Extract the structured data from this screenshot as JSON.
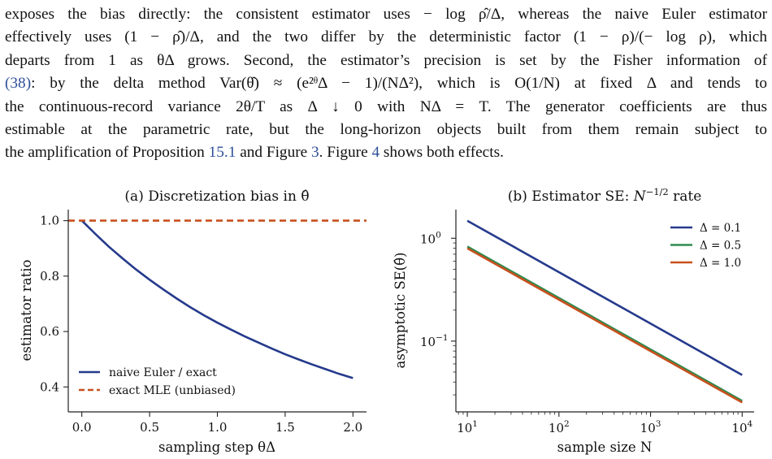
{
  "text_lines": [
    "exposes the bias directly: the consistent estimator uses − log ρ̂/Δ, whereas the naive Euler estimator",
    "effectively uses (1 − ρ̂)/Δ, and the two differ by the deterministic factor (1 − ρ)/(− log ρ), which",
    "departs from 1 as θΔ grows. Second, the estimator’s precision is set by the Fisher information of",
    "(38): by the delta method Var(θ̂) ≈ (e²ᶿΔ − 1)/(NΔ²), which is O(1/N) at fixed Δ and tends to",
    "the continuous-record variance 2θ/T as Δ ↓ 0 with NΔ = T. The generator coefficients are thus",
    "estimable at the parametric rate, but the long-horizon objects built from them remain subject to",
    "the amplification of Proposition 15.1 and Figure 3. Figure 4 shows both effects."
  ],
  "line4_ref": "(38)",
  "line4_rest": ": by the delta method Var(θ̂) ≈ (e²ᶿΔ − 1)/(NΔ²), which is O(1/N) at fixed Δ and tends to",
  "line7_parts": {
    "a": "the amplification of Proposition ",
    "ref1": "15.1",
    "b": " and Figure ",
    "ref2": "3",
    "c": ". Figure ",
    "ref3": "4",
    "d": " shows both effects."
  },
  "chart_data": [
    {
      "type": "line",
      "title": "(a) Discretization bias in θ̂",
      "xlabel": "sampling step θΔ",
      "ylabel": "estimator ratio",
      "xlim": [
        -0.1,
        2.1
      ],
      "ylim": [
        0.31,
        1.04
      ],
      "xticks": [
        0.0,
        0.5,
        1.0,
        1.5,
        2.0
      ],
      "xtick_labels": [
        "0.0",
        "0.5",
        "1.0",
        "1.5",
        "2.0"
      ],
      "yticks": [
        0.4,
        0.6,
        0.8,
        1.0
      ],
      "ytick_labels": [
        "0.4",
        "0.6",
        "0.8",
        "1.0"
      ],
      "legend_position": "lower-left",
      "series": [
        {
          "name": "naive Euler / exact",
          "color": "#253a8c",
          "style": "solid",
          "x": [
            0.0,
            0.1,
            0.2,
            0.3,
            0.4,
            0.5,
            0.6,
            0.7,
            0.8,
            0.9,
            1.0,
            1.1,
            1.2,
            1.3,
            1.4,
            1.5,
            1.6,
            1.7,
            1.8,
            1.9,
            2.0
          ],
          "y": [
            1.0,
            0.952,
            0.906,
            0.864,
            0.824,
            0.787,
            0.752,
            0.719,
            0.688,
            0.659,
            0.632,
            0.607,
            0.583,
            0.561,
            0.539,
            0.518,
            0.499,
            0.481,
            0.464,
            0.447,
            0.432
          ]
        },
        {
          "name": "exact MLE (unbiased)",
          "color": "#c8501e",
          "style": "dashed",
          "x": [
            -0.1,
            2.1
          ],
          "y": [
            1.0,
            1.0
          ]
        }
      ]
    },
    {
      "type": "line",
      "title": "(b) Estimator SE: N⁻¹ᐟ² rate",
      "title_parts": {
        "pre": "(b) Estimator SE: ",
        "var": "N",
        "sup": "−1/2",
        "post": " rate"
      },
      "xlabel": "sample size N",
      "ylabel": "asymptotic SE(θ̂)",
      "xscale": "log",
      "yscale": "log",
      "xlim": [
        7.5,
        13500
      ],
      "ylim": [
        0.0205,
        1.9
      ],
      "xtick_labels": [
        {
          "base": "10",
          "exp": "1",
          "v": 10
        },
        {
          "base": "10",
          "exp": "2",
          "v": 100
        },
        {
          "base": "10",
          "exp": "3",
          "v": 1000
        },
        {
          "base": "10",
          "exp": "4",
          "v": 10000
        }
      ],
      "ytick_labels": [
        {
          "base": "10",
          "exp": "0",
          "v": 1
        },
        {
          "base": "10",
          "exp": "−1",
          "v": 0.1
        }
      ],
      "legend_position": "top-right",
      "series": [
        {
          "name": "Δ = 0.1",
          "color": "#253a8c",
          "x": [
            10,
            10000
          ],
          "y": [
            1.48,
            0.0468
          ]
        },
        {
          "name": "Δ = 0.5",
          "color": "#2e8b4f",
          "x": [
            10,
            10000
          ],
          "y": [
            0.83,
            0.0262
          ]
        },
        {
          "name": "Δ = 1.0",
          "color": "#c8501e",
          "x": [
            10,
            10000
          ],
          "y": [
            0.8,
            0.0253
          ]
        }
      ]
    }
  ]
}
